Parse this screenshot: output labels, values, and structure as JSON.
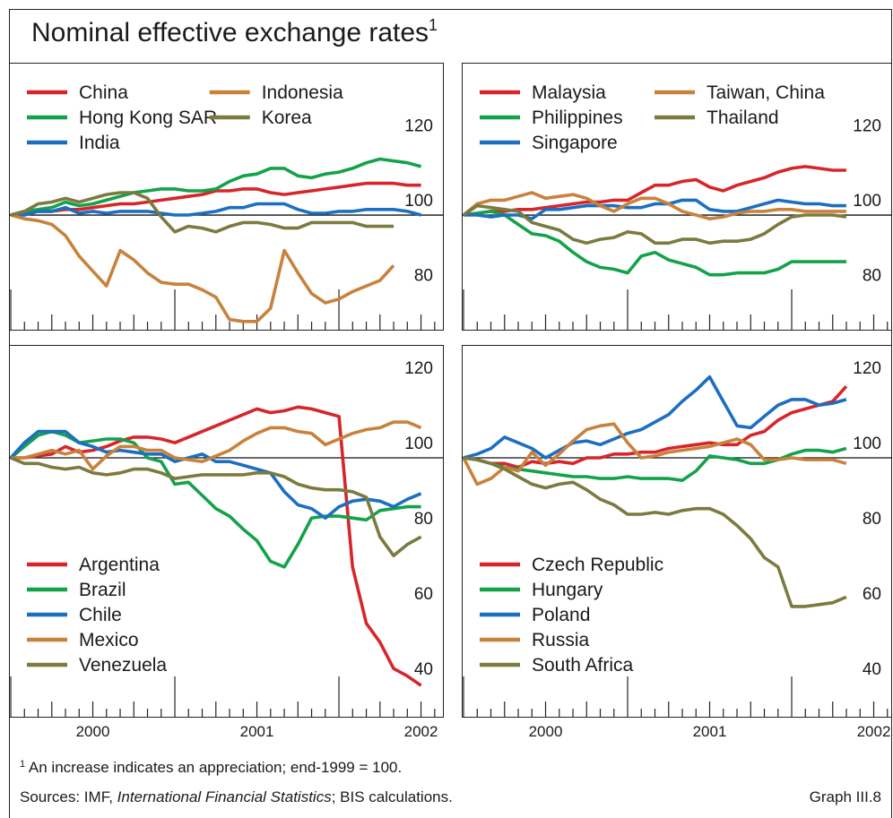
{
  "title": "Nominal effective exchange rates",
  "title_note": "1",
  "chart_data": [
    {
      "type": "line",
      "legend": "top-left",
      "xtick_labels": false,
      "x": [
        2000,
        2000.083,
        2000.167,
        2000.25,
        2000.333,
        2000.417,
        2000.5,
        2000.583,
        2000.667,
        2000.75,
        2000.833,
        2000.917,
        2001,
        2001.083,
        2001.167,
        2001.25,
        2001.333,
        2001.417,
        2001.5,
        2001.583,
        2001.667,
        2001.75,
        2001.833,
        2001.917,
        2002,
        2002.083,
        2002.167,
        2002.25,
        2002.333,
        2002.417,
        2002.5
      ],
      "xlim": [
        1999.989,
        2002.639
      ],
      "xticks": [
        2000,
        2001,
        2002
      ],
      "ylim": [
        69.3,
        140.8
      ],
      "yticks": [
        80,
        100,
        120
      ],
      "refline": 100,
      "series": [
        {
          "name": "China",
          "color": "#d7262b",
          "values": [
            100,
            100.5,
            101,
            101,
            101.5,
            101.5,
            102,
            102.5,
            103,
            103,
            103.5,
            104,
            104.5,
            105,
            105.5,
            106.5,
            106.5,
            107,
            107,
            106,
            105.5,
            106,
            106.5,
            107,
            107.5,
            108,
            108.5,
            108.5,
            108.5,
            108,
            108
          ]
        },
        {
          "name": "Hong Kong SAR",
          "color": "#13a24a",
          "values": [
            100,
            101,
            101.5,
            102,
            103.5,
            102.5,
            103,
            104,
            105,
            106,
            106.5,
            107,
            107,
            106.5,
            106.5,
            107,
            109,
            110.5,
            111,
            112.5,
            112.5,
            110.5,
            110,
            111,
            111.5,
            112.5,
            114,
            115,
            114.5,
            114,
            113
          ]
        },
        {
          "name": "India",
          "color": "#1c6fc0",
          "values": [
            100,
            100,
            101,
            101,
            102,
            100.5,
            101,
            100.5,
            101,
            101,
            101,
            100.5,
            100,
            100,
            100.5,
            101,
            102,
            102,
            103,
            103,
            103,
            101.5,
            100.5,
            100.5,
            101,
            101,
            101.5,
            101.5,
            101.5,
            101,
            100
          ]
        },
        {
          "name": "Indonesia",
          "color": "#c8823c",
          "values": [
            100,
            99,
            98.5,
            97.5,
            94.5,
            89,
            85,
            81,
            90.5,
            88,
            84.5,
            82,
            81.5,
            81.5,
            80,
            78,
            72,
            71.5,
            71.5,
            75,
            90.5,
            84.5,
            79,
            76.5,
            77.5,
            79.5,
            81,
            82.5,
            86.5,
            null,
            null
          ]
        },
        {
          "name": "Korea",
          "color": "#7b7a3f",
          "values": [
            100,
            101,
            103,
            103.5,
            104.5,
            103.5,
            104.5,
            105.5,
            106,
            106,
            104.5,
            99.5,
            95.5,
            97,
            96.5,
            95.5,
            97,
            98,
            98,
            97.5,
            96.5,
            96.5,
            98,
            98,
            98,
            98,
            97,
            97,
            97,
            null,
            null
          ]
        }
      ]
    },
    {
      "type": "line",
      "legend": "top-left",
      "xtick_labels": false,
      "x": [
        2000,
        2000.083,
        2000.167,
        2000.25,
        2000.333,
        2000.417,
        2000.5,
        2000.583,
        2000.667,
        2000.75,
        2000.833,
        2000.917,
        2001,
        2001.083,
        2001.167,
        2001.25,
        2001.333,
        2001.417,
        2001.5,
        2001.583,
        2001.667,
        2001.75,
        2001.833,
        2001.917,
        2002,
        2002.083,
        2002.167,
        2002.25,
        2002.333
      ],
      "xlim": [
        1999.989,
        2002.612
      ],
      "xticks": [
        2000,
        2001,
        2002
      ],
      "ylim": [
        69.3,
        140.8
      ],
      "yticks": [
        80,
        100,
        120
      ],
      "refline": 100,
      "series": [
        {
          "name": "Malaysia",
          "color": "#d7262b",
          "values": [
            100,
            100.5,
            101,
            101,
            101.5,
            101.5,
            102,
            102.5,
            103,
            103.5,
            103.5,
            104,
            104,
            106,
            108,
            108,
            109,
            109.5,
            107.5,
            106.5,
            108,
            109,
            110,
            111.5,
            112.5,
            113,
            112.5,
            112,
            112
          ]
        },
        {
          "name": "Philippines",
          "color": "#13a24a",
          "values": [
            100,
            100.5,
            101,
            100,
            97.5,
            95,
            94.5,
            93,
            90,
            87.5,
            86,
            85.5,
            84.5,
            89,
            90,
            88,
            87,
            86,
            84,
            84,
            84.5,
            84.5,
            84.5,
            85.5,
            87.5,
            87.5,
            87.5,
            87.5,
            87.5
          ]
        },
        {
          "name": "Singapore",
          "color": "#1c6fc0",
          "values": [
            100,
            100,
            99.5,
            100,
            100,
            99,
            101.5,
            101.5,
            102,
            102.5,
            102.5,
            102.5,
            102,
            102,
            103,
            103,
            104,
            104,
            101.5,
            101,
            101,
            102,
            103,
            104,
            103.5,
            103,
            103,
            102.5,
            102.5
          ]
        },
        {
          "name": "Taiwan, China",
          "color": "#c8823c",
          "values": [
            100,
            103,
            104,
            104,
            105,
            106,
            104.5,
            105,
            105.5,
            104.5,
            102.5,
            101,
            103,
            104.5,
            104.5,
            103,
            101,
            100,
            99,
            99.5,
            100.5,
            101,
            101,
            101.5,
            101.5,
            101,
            101,
            101,
            101
          ]
        },
        {
          "name": "Thailand",
          "color": "#7b7a3f",
          "values": [
            100,
            102.5,
            102,
            101.5,
            101,
            98,
            97,
            96,
            93.5,
            92.5,
            93.5,
            94,
            95.5,
            95,
            92.5,
            92.5,
            93.5,
            93.5,
            92.5,
            93,
            93,
            93.5,
            95,
            97.5,
            99.5,
            100,
            100,
            100,
            99.5
          ]
        }
      ]
    },
    {
      "type": "line",
      "legend": "bottom-left",
      "xtick_labels": true,
      "x": [
        2000,
        2000.083,
        2000.167,
        2000.25,
        2000.333,
        2000.417,
        2000.5,
        2000.583,
        2000.667,
        2000.75,
        2000.833,
        2000.917,
        2001,
        2001.083,
        2001.167,
        2001.25,
        2001.333,
        2001.417,
        2001.5,
        2001.583,
        2001.667,
        2001.75,
        2001.833,
        2001.917,
        2002,
        2002.083,
        2002.167,
        2002.25,
        2002.333,
        2002.417,
        2002.5
      ],
      "xlim": [
        1999.989,
        2002.639
      ],
      "xticks": [
        2000,
        2001,
        2002
      ],
      "ylim": [
        31.2,
        130
      ],
      "yticks": [
        40,
        60,
        80,
        100,
        120
      ],
      "refline": 100,
      "series": [
        {
          "name": "Argentina",
          "color": "#d7262b",
          "values": [
            100,
            100,
            100.5,
            101,
            103,
            101.5,
            102,
            103,
            104.5,
            105.5,
            105.5,
            105,
            104,
            105.5,
            107,
            108.5,
            110,
            111.5,
            113,
            112,
            112.5,
            113.5,
            113,
            112,
            111,
            71,
            56,
            51,
            44,
            42,
            39.5
          ]
        },
        {
          "name": "Brazil",
          "color": "#13a24a",
          "values": [
            100,
            103,
            106,
            107,
            106,
            104,
            104.5,
            105,
            105,
            104,
            100,
            99,
            93,
            93.5,
            90,
            86.5,
            84.5,
            81,
            78,
            72.5,
            71,
            77,
            84,
            84.5,
            84.5,
            84,
            83.5,
            86,
            86.5,
            87,
            87
          ]
        },
        {
          "name": "Chile",
          "color": "#1c6fc0",
          "values": [
            100,
            104,
            107,
            107,
            107,
            104,
            103,
            101.5,
            102,
            101.5,
            101,
            101,
            99,
            100,
            101,
            99,
            99,
            98,
            97,
            96,
            91,
            87.5,
            86.5,
            84,
            87,
            88.5,
            89,
            88.5,
            87,
            89,
            90.5
          ]
        },
        {
          "name": "Mexico",
          "color": "#c8823c",
          "values": [
            100,
            100,
            101,
            102,
            101,
            102,
            97,
            100.5,
            103,
            103,
            102,
            102,
            100,
            99.5,
            99,
            100.5,
            102,
            104.5,
            106.5,
            108,
            108,
            107,
            106.5,
            103.5,
            105,
            106.5,
            107.5,
            108,
            109.5,
            109.5,
            108
          ]
        },
        {
          "name": "Venezuela",
          "color": "#7b7a3f",
          "values": [
            100,
            98.5,
            98.5,
            97.5,
            97,
            97.5,
            96,
            95.5,
            96,
            97,
            97,
            96,
            94.5,
            95,
            95.5,
            95.5,
            95.5,
            95.5,
            96,
            96,
            95,
            93,
            92,
            91.5,
            91.5,
            91,
            89.5,
            79,
            74,
            77,
            79
          ]
        }
      ]
    },
    {
      "type": "line",
      "legend": "bottom-left",
      "xtick_labels": true,
      "x": [
        2000,
        2000.083,
        2000.167,
        2000.25,
        2000.333,
        2000.417,
        2000.5,
        2000.583,
        2000.667,
        2000.75,
        2000.833,
        2000.917,
        2001,
        2001.083,
        2001.167,
        2001.25,
        2001.333,
        2001.417,
        2001.5,
        2001.583,
        2001.667,
        2001.75,
        2001.833,
        2001.917,
        2002,
        2002.083,
        2002.167,
        2002.25,
        2002.333
      ],
      "xlim": [
        1999.989,
        2002.612
      ],
      "xticks": [
        2000,
        2001,
        2002
      ],
      "ylim": [
        31.2,
        130
      ],
      "yticks": [
        40,
        60,
        80,
        100,
        120
      ],
      "refline": 100,
      "series": [
        {
          "name": "Czech Republic",
          "color": "#d7262b",
          "values": [
            100,
            99.5,
            98.5,
            98.5,
            97.5,
            99,
            98.5,
            99,
            98.5,
            100,
            100,
            101,
            101,
            101.5,
            101.5,
            102.5,
            103,
            103.5,
            104,
            103.5,
            103.5,
            106,
            107,
            110,
            112,
            113,
            114,
            115,
            119
          ]
        },
        {
          "name": "Hungary",
          "color": "#13a24a",
          "values": [
            100,
            99.5,
            98.5,
            97.5,
            97,
            96.5,
            96,
            95.5,
            95,
            95,
            94.5,
            94.5,
            95,
            94.5,
            94.5,
            94.5,
            94,
            96.5,
            100.5,
            100,
            99.5,
            98.5,
            98.5,
            99.5,
            101,
            102,
            102,
            101.5,
            102.5
          ]
        },
        {
          "name": "Poland",
          "color": "#1c6fc0",
          "values": [
            100,
            101,
            102.5,
            105.5,
            104,
            102.5,
            100,
            102,
            104,
            104.5,
            103.5,
            105,
            106.5,
            107.5,
            109.5,
            111.5,
            115,
            118,
            121.5,
            115,
            108.5,
            108,
            111,
            114,
            115.5,
            115.5,
            114,
            114.5,
            115.5
          ]
        },
        {
          "name": "Russia",
          "color": "#c8823c",
          "values": [
            100,
            93,
            94.5,
            97.5,
            96.5,
            101.5,
            98,
            101,
            104.5,
            107.5,
            108.5,
            109,
            104,
            100,
            100.5,
            101.5,
            102,
            102.5,
            103,
            104,
            105,
            103.5,
            99.5,
            99.5,
            100,
            99.5,
            99.5,
            99.5,
            98.5
          ]
        },
        {
          "name": "South Africa",
          "color": "#7b7a3f",
          "values": [
            100,
            99.5,
            98.5,
            97,
            95,
            93,
            92,
            93,
            93.5,
            91.5,
            89,
            87.5,
            85,
            85,
            85.5,
            85,
            86,
            86.5,
            86.5,
            85,
            82,
            78.5,
            73.5,
            71,
            60.5,
            60.5,
            61,
            61.5,
            63
          ]
        }
      ]
    }
  ],
  "footnote": {
    "marker": "1",
    "text": " An increase indicates an appreciation; end-1999 = 100."
  },
  "sources": [
    "Sources: IMF, ",
    "International Financial Statistics",
    "; BIS calculations."
  ],
  "graph_label": "Graph III.8"
}
